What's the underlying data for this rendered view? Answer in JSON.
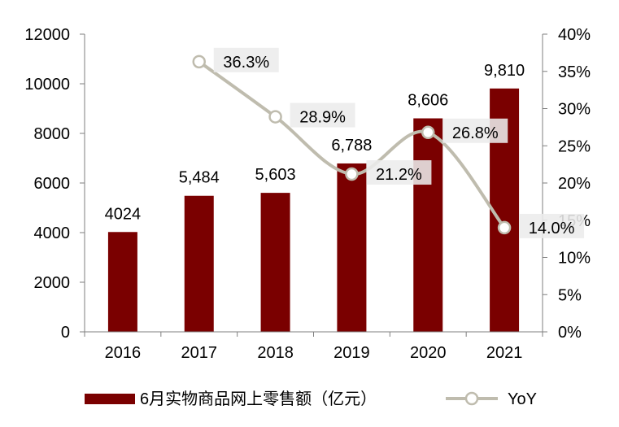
{
  "chart_data": {
    "type": "bar",
    "categories": [
      "2016",
      "2017",
      "2018",
      "2019",
      "2020",
      "2021"
    ],
    "series": [
      {
        "name": "6月实物商品网上零售额（亿元）",
        "type": "bar",
        "axis": "left",
        "values": [
          4024,
          5484,
          5603,
          6788,
          8606,
          9810
        ],
        "labels": [
          "4024",
          "5,484",
          "5,603",
          "6,788",
          "8,606",
          "9,810"
        ],
        "color": "#7a0000"
      },
      {
        "name": "YoY",
        "type": "line",
        "axis": "right",
        "values": [
          null,
          36.3,
          28.9,
          21.2,
          26.8,
          14.0
        ],
        "labels": [
          "",
          "36.3%",
          "28.9%",
          "21.2%",
          "26.8%",
          "14.0%"
        ],
        "color": "#bfbcae"
      }
    ],
    "y_left": {
      "ylim": [
        0,
        12000
      ],
      "ticks": [
        "0",
        "2000",
        "4000",
        "6000",
        "8000",
        "10000",
        "12000"
      ]
    },
    "y_right": {
      "ylim": [
        0,
        40
      ],
      "ticks": [
        "0%",
        "5%",
        "10%",
        "15%",
        "20%",
        "25%",
        "30%",
        "35%",
        "40%"
      ]
    },
    "grid": false,
    "legend": "bottom"
  }
}
